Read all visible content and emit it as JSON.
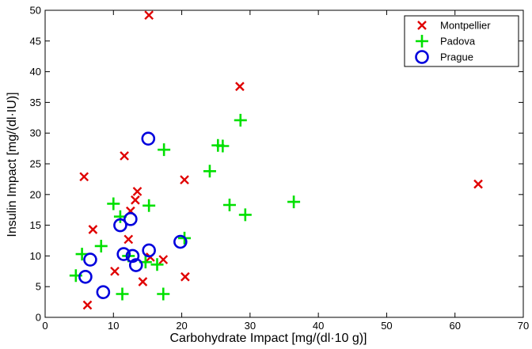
{
  "chart_data": {
    "type": "scatter",
    "xlabel": "Carbohydrate Impact [mg/(dl·10 g)]",
    "ylabel": "Insulin Impact [mg/(dl·IU)]",
    "xlim": [
      0,
      70
    ],
    "ylim": [
      0,
      50
    ],
    "xticks": [
      "0",
      "10",
      "20",
      "30",
      "40",
      "50",
      "60",
      "70"
    ],
    "yticks": [
      "0",
      "5",
      "10",
      "15",
      "20",
      "25",
      "30",
      "35",
      "40",
      "45",
      "50"
    ],
    "legend_position": "top-right",
    "grid": false,
    "series": [
      {
        "name": "Montpellier",
        "marker": "x",
        "color": "#e00000",
        "points": [
          [
            15.2,
            49.2
          ],
          [
            28.5,
            37.6
          ],
          [
            11.6,
            26.3
          ],
          [
            5.7,
            22.9
          ],
          [
            20.4,
            22.4
          ],
          [
            13.5,
            20.5
          ],
          [
            13.2,
            19.1
          ],
          [
            12.5,
            17.3
          ],
          [
            7.0,
            14.3
          ],
          [
            12.2,
            12.7
          ],
          [
            10.2,
            7.5
          ],
          [
            15.4,
            9.8
          ],
          [
            17.3,
            9.4
          ],
          [
            14.3,
            5.8
          ],
          [
            20.5,
            6.6
          ],
          [
            6.2,
            2.0
          ],
          [
            63.4,
            21.7
          ]
        ]
      },
      {
        "name": "Padova",
        "marker": "+",
        "color": "#00e000",
        "points": [
          [
            28.6,
            32.1
          ],
          [
            25.3,
            28.0
          ],
          [
            26.0,
            27.9
          ],
          [
            17.4,
            27.3
          ],
          [
            24.1,
            23.8
          ],
          [
            10.0,
            18.5
          ],
          [
            15.2,
            18.2
          ],
          [
            27.0,
            18.3
          ],
          [
            36.4,
            18.8
          ],
          [
            29.3,
            16.7
          ],
          [
            11.0,
            16.4
          ],
          [
            20.4,
            12.9
          ],
          [
            8.2,
            11.6
          ],
          [
            5.4,
            10.3
          ],
          [
            12.2,
            10.0
          ],
          [
            14.7,
            9.0
          ],
          [
            16.4,
            8.6
          ],
          [
            4.5,
            6.8
          ],
          [
            11.3,
            3.8
          ],
          [
            17.3,
            3.8
          ]
        ]
      },
      {
        "name": "Prague",
        "marker": "o",
        "color": "#0000dd",
        "points": [
          [
            15.1,
            29.1
          ],
          [
            12.5,
            16.0
          ],
          [
            11.0,
            15.0
          ],
          [
            19.8,
            12.3
          ],
          [
            15.2,
            10.9
          ],
          [
            11.5,
            10.3
          ],
          [
            12.8,
            10.0
          ],
          [
            6.6,
            9.4
          ],
          [
            13.3,
            8.5
          ],
          [
            5.9,
            6.6
          ],
          [
            8.5,
            4.1
          ]
        ]
      }
    ]
  }
}
